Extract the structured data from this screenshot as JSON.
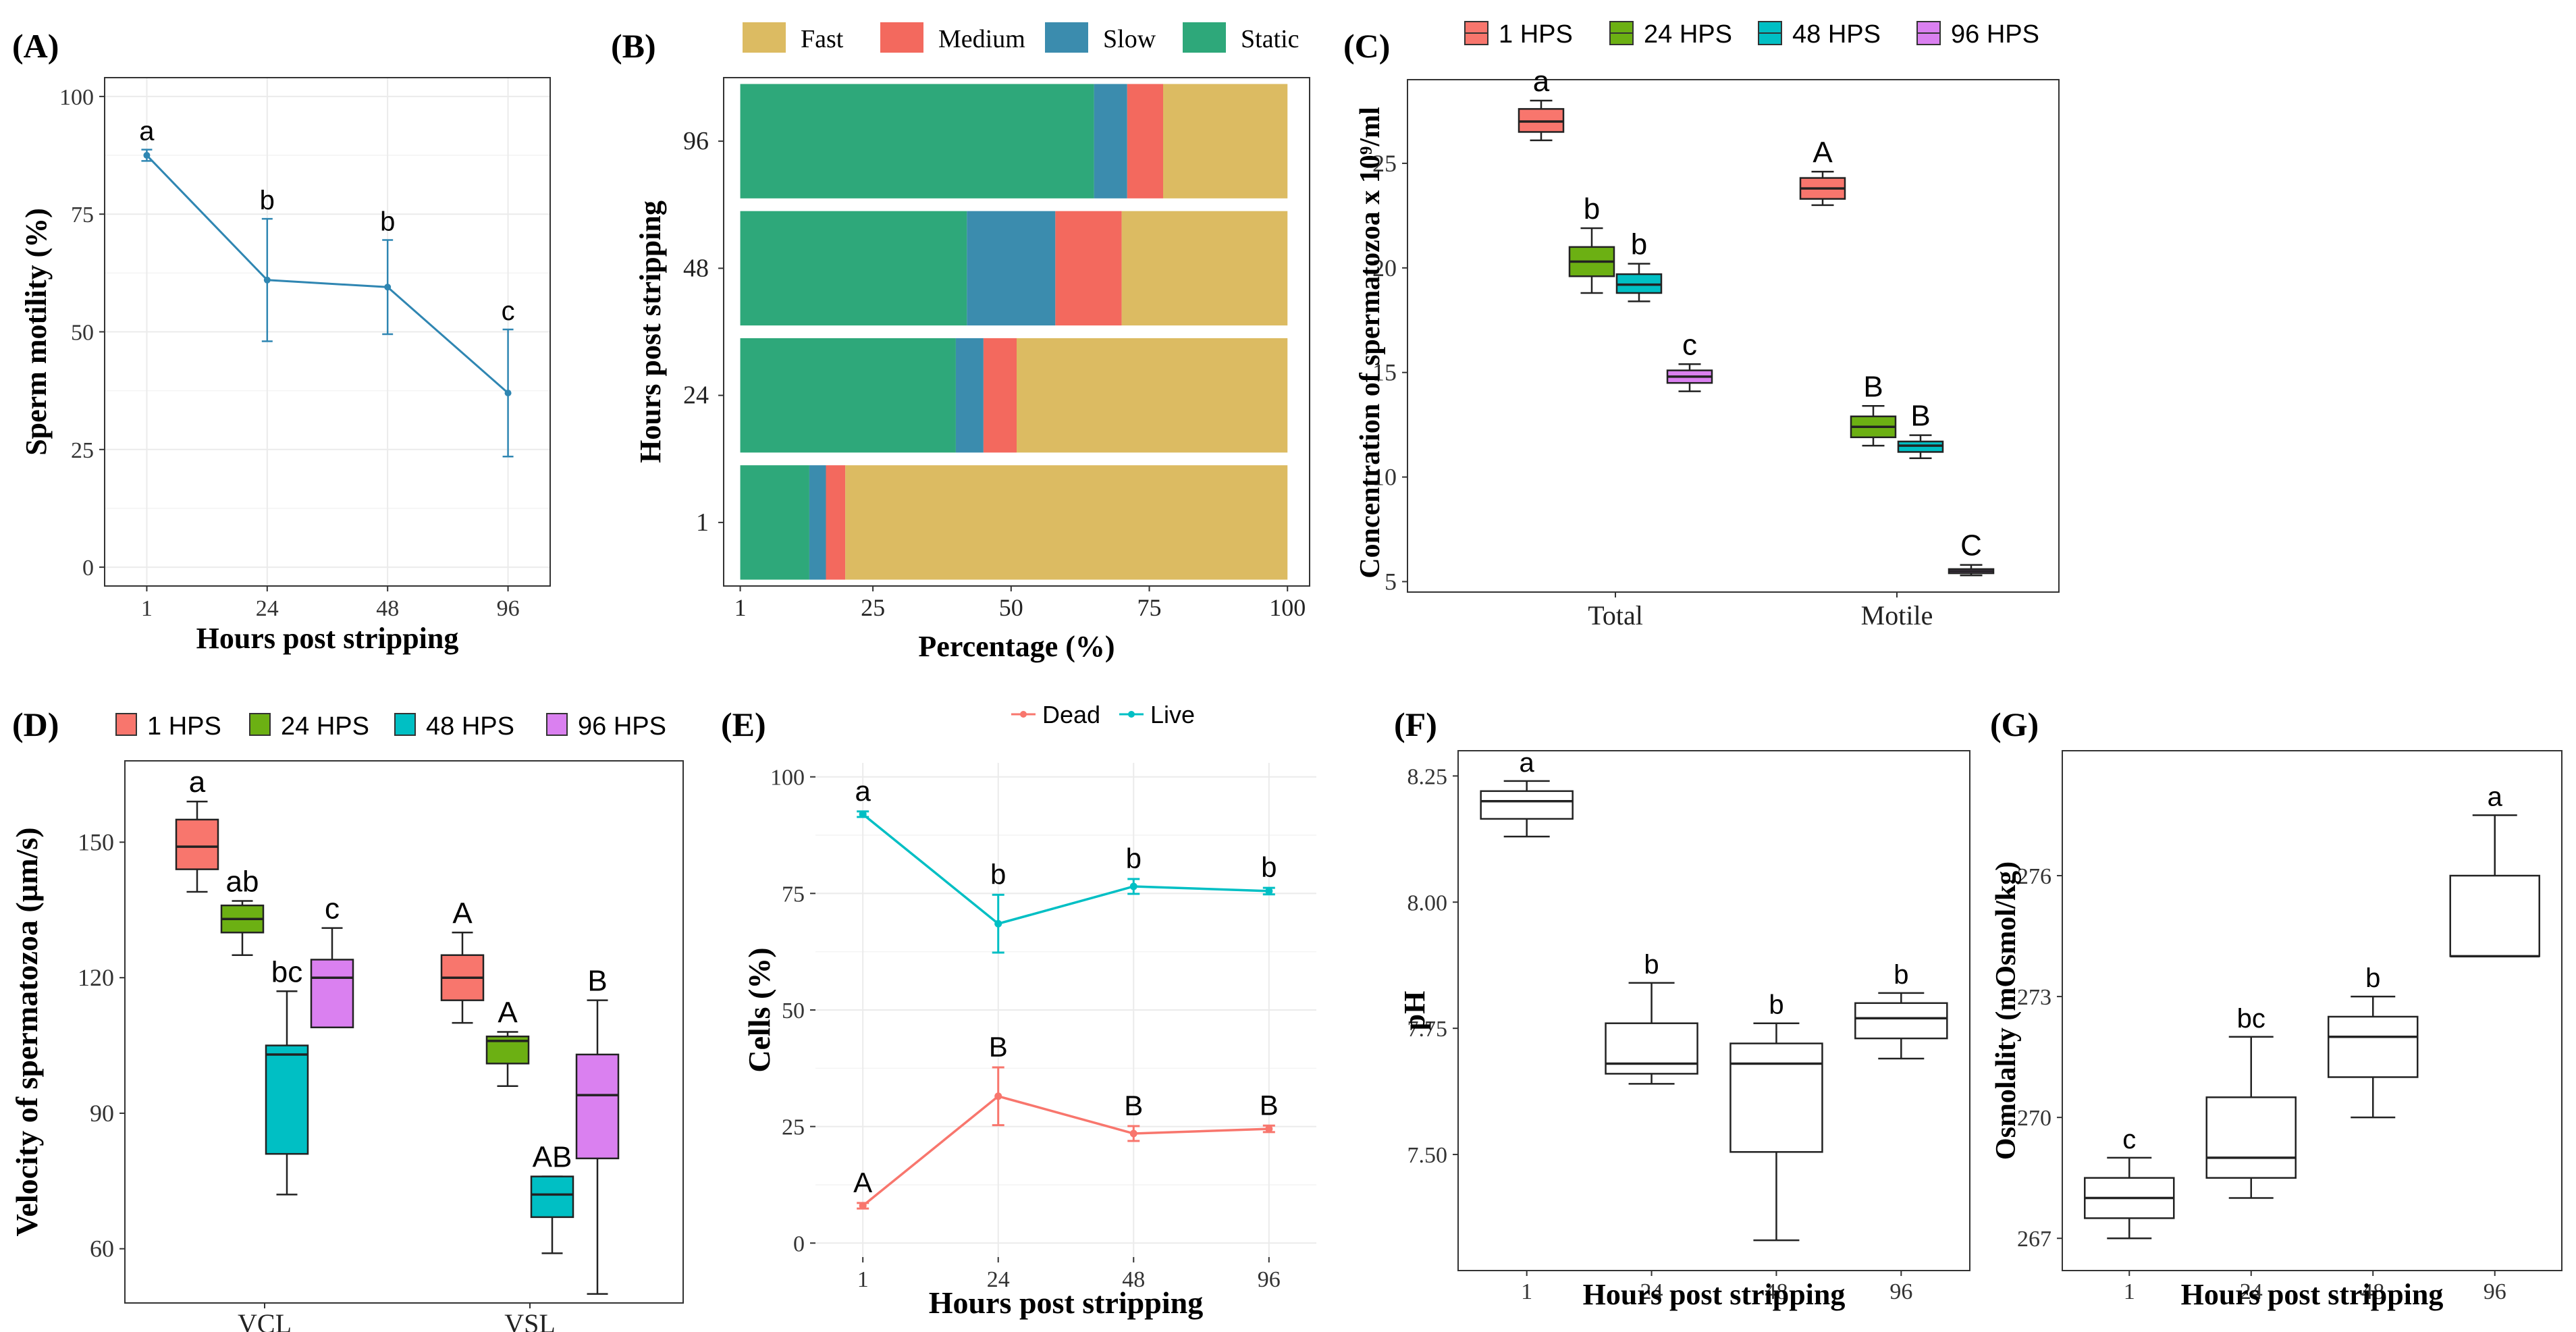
{
  "chart_data": [
    {
      "type": "line",
      "panel_label": "(A)",
      "xlabel": "Hours post stripping",
      "ylabel": "Sperm motility (%)",
      "x": [
        "1",
        "24",
        "48",
        "96"
      ],
      "ylim": [
        0,
        100
      ],
      "yticks": [
        0,
        25,
        50,
        75,
        100
      ],
      "grid": true,
      "color": "#2f86b2",
      "series": [
        {
          "name": "Motility",
          "values": [
            87.5,
            61,
            59.5,
            37
          ],
          "err": [
            1.2,
            13,
            10,
            13.5
          ]
        }
      ],
      "letters": [
        "a",
        "b",
        "b",
        "c"
      ]
    },
    {
      "type": "bar",
      "orientation": "horizontal-stacked",
      "panel_label": "(B)",
      "xlabel": "Percentage (%)",
      "ylabel": "Hours post stripping",
      "categories": [
        "1",
        "24",
        "48",
        "96"
      ],
      "xlim": [
        1,
        100
      ],
      "xticks": [
        1,
        25,
        50,
        75,
        100
      ],
      "legend": "top",
      "series": [
        {
          "name": "Static",
          "color": "#2ea87a",
          "values": [
            12.5,
            39,
            41,
            64
          ]
        },
        {
          "name": "Slow",
          "color": "#3b8cae",
          "values": [
            3,
            5,
            16,
            6
          ]
        },
        {
          "name": "Medium",
          "color": "#f3695e",
          "values": [
            3.5,
            6,
            12,
            6.5
          ]
        },
        {
          "name": "Fast",
          "color": "#dcbb62",
          "values": [
            81,
            50,
            31,
            23.5
          ]
        }
      ],
      "legend_order": [
        "Fast",
        "Medium",
        "Slow",
        "Static"
      ]
    },
    {
      "type": "box",
      "panel_label": "(C)",
      "ylabel": "Concentration of spermatozoa x 10⁹/ml",
      "groups": [
        "Total",
        "Motile"
      ],
      "ylim": [
        4.5,
        29
      ],
      "yticks": [
        5,
        10,
        15,
        20,
        25
      ],
      "legend": "top",
      "series": [
        {
          "name": "1 HPS",
          "color": "#f8766d",
          "boxes": [
            [
              26.1,
              26.5,
              27.0,
              27.6,
              28.0
            ],
            [
              23.0,
              23.3,
              23.8,
              24.3,
              24.6
            ]
          ],
          "letters": [
            "a",
            "A"
          ]
        },
        {
          "name": "24 HPS",
          "color": "#6cb013",
          "boxes": [
            [
              18.8,
              19.6,
              20.3,
              21.0,
              21.9
            ],
            [
              11.5,
              11.9,
              12.4,
              12.9,
              13.4
            ]
          ],
          "letters": [
            "b",
            "B"
          ]
        },
        {
          "name": "48 HPS",
          "color": "#00bfc4",
          "boxes": [
            [
              18.4,
              18.8,
              19.2,
              19.7,
              20.2
            ],
            [
              10.9,
              11.2,
              11.5,
              11.7,
              12.0
            ]
          ],
          "letters": [
            "b",
            "B"
          ]
        },
        {
          "name": "96 HPS",
          "color": "#da80f0",
          "boxes": [
            [
              14.1,
              14.5,
              14.8,
              15.1,
              15.4
            ],
            [
              5.3,
              5.4,
              5.5,
              5.6,
              5.8
            ]
          ],
          "letters": [
            "c",
            "C"
          ]
        }
      ]
    },
    {
      "type": "box",
      "panel_label": "(D)",
      "ylabel": "Velocity of spermatozoa (µm/s)",
      "groups": [
        "VCL",
        "VSL"
      ],
      "ylim": [
        48,
        168
      ],
      "yticks": [
        60,
        90,
        120,
        150
      ],
      "legend": "top",
      "series": [
        {
          "name": "1 HPS",
          "color": "#f8766d",
          "boxes": [
            [
              139,
              144,
              149,
              155,
              159
            ],
            [
              110,
              115,
              120,
              125,
              130
            ]
          ],
          "letters": [
            "a",
            "A"
          ]
        },
        {
          "name": "24 HPS",
          "color": "#6cb013",
          "boxes": [
            [
              125,
              130,
              133,
              136,
              137
            ],
            [
              96,
              101,
              106,
              107,
              108
            ]
          ],
          "letters": [
            "ab",
            "A"
          ]
        },
        {
          "name": "48 HPS",
          "color": "#00bfc4",
          "boxes": [
            [
              72,
              81,
              103,
              105,
              117
            ],
            [
              59,
              67,
              72,
              76,
              76
            ]
          ],
          "letters": [
            "bc",
            "AB"
          ]
        },
        {
          "name": "96 HPS",
          "color": "#da80f0",
          "boxes": [
            [
              109,
              109,
              120,
              124,
              131
            ],
            [
              50,
              80,
              94,
              103,
              115
            ]
          ],
          "letters": [
            "c",
            "B"
          ]
        }
      ]
    },
    {
      "type": "line",
      "panel_label": "(E)",
      "xlabel": "Hours post stripping",
      "ylabel": "Cells (%)",
      "x": [
        "1",
        "24",
        "48",
        "96"
      ],
      "ylim": [
        -3,
        103
      ],
      "yticks": [
        0,
        25,
        50,
        75,
        100
      ],
      "grid": true,
      "legend": "top",
      "series": [
        {
          "name": "Dead",
          "color": "#f8766d",
          "values": [
            8,
            31.5,
            23.5,
            24.5
          ],
          "err": [
            0.6,
            6.2,
            1.6,
            0.7
          ],
          "letters": [
            "A",
            "B",
            "B",
            "B"
          ]
        },
        {
          "name": "Live",
          "color": "#00bfc4",
          "values": [
            92,
            68.5,
            76.5,
            75.5
          ],
          "err": [
            0.6,
            6.2,
            1.6,
            0.7
          ],
          "letters": [
            "a",
            "b",
            "b",
            "b"
          ]
        }
      ]
    },
    {
      "type": "box",
      "panel_label": "(F)",
      "xlabel": "Hours post stripping",
      "ylabel": "pH",
      "categories": [
        "1",
        "24",
        "48",
        "96"
      ],
      "ylim": [
        7.27,
        8.3
      ],
      "yticks": [
        7.5,
        7.75,
        8.0,
        8.25
      ],
      "yticklabels": [
        "7.50",
        "7.75",
        "8.00",
        "8.25"
      ],
      "boxes": [
        [
          8.13,
          8.165,
          8.2,
          8.22,
          8.24
        ],
        [
          7.64,
          7.66,
          7.68,
          7.76,
          7.84
        ],
        [
          7.33,
          7.505,
          7.68,
          7.72,
          7.76
        ],
        [
          7.69,
          7.73,
          7.77,
          7.8,
          7.82
        ]
      ],
      "letters": [
        "a",
        "b",
        "b",
        "b"
      ]
    },
    {
      "type": "box",
      "panel_label": "(G)",
      "xlabel": "Hours post stripping",
      "ylabel": "Osmolality (mOsmol/kg)",
      "categories": [
        "1",
        "24",
        "48",
        "96"
      ],
      "ylim": [
        266.2,
        279.1
      ],
      "yticks": [
        267,
        270,
        273,
        276
      ],
      "boxes": [
        [
          267,
          267.5,
          268,
          268.5,
          269
        ],
        [
          268,
          268.5,
          269,
          270.5,
          272
        ],
        [
          270,
          271,
          272,
          272.5,
          273
        ],
        [
          274,
          274,
          274,
          276,
          277.5
        ]
      ],
      "letters": [
        "c",
        "bc",
        "b",
        "a"
      ]
    }
  ]
}
